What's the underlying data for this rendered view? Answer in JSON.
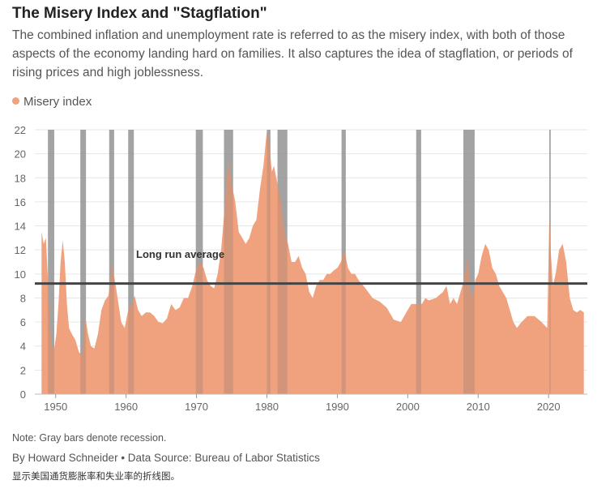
{
  "header": {
    "title": "The Misery Index and \"Stagflation\"",
    "subtitle": "The combined inflation and unemployment rate is referred to as the misery index, with both of those aspects of the economy landing hard on families. It also captures the idea of stagflation, or periods of rising prices and high joblessness."
  },
  "legend": {
    "label": "Misery index"
  },
  "footer": {
    "note": "Note: Gray bars denote recession.",
    "credit": "By Howard Schneider • Data Source: Bureau of Labor Statistics",
    "caption_cn": "显示美国通货膨胀率和失业率的折线图。"
  },
  "colors": {
    "area": "#f0a17d",
    "recession": "#9a9a9a",
    "average_line": "#444444",
    "grid": "#e6e6e6"
  },
  "chart_data": {
    "type": "area",
    "ylim": [
      0,
      22
    ],
    "xlim": [
      1947.5,
      2025.5
    ],
    "y_ticks": [
      0,
      2,
      4,
      6,
      8,
      10,
      12,
      14,
      16,
      18,
      20,
      22
    ],
    "x_ticks": [
      1950,
      1960,
      1970,
      1980,
      1990,
      2000,
      2010,
      2020
    ],
    "grid": true,
    "legend_position": "top-left",
    "series": [
      {
        "name": "Misery index",
        "x": [
          1948.0,
          1948.3,
          1948.6,
          1948.9,
          1949.2,
          1949.5,
          1949.8,
          1950.1,
          1950.4,
          1950.7,
          1951.0,
          1951.3,
          1951.6,
          1951.9,
          1952.3,
          1952.8,
          1953.3,
          1953.8,
          1954.2,
          1954.6,
          1955.0,
          1955.5,
          1956.0,
          1956.5,
          1957.0,
          1957.5,
          1958.0,
          1958.4,
          1958.8,
          1959.3,
          1959.8,
          1960.3,
          1960.8,
          1961.2,
          1961.7,
          1962.2,
          1962.8,
          1963.4,
          1964.0,
          1964.6,
          1965.2,
          1965.8,
          1966.4,
          1967.0,
          1967.6,
          1968.2,
          1968.8,
          1969.4,
          1970.0,
          1970.5,
          1971.0,
          1971.5,
          1972.0,
          1972.5,
          1973.0,
          1973.5,
          1974.0,
          1974.5,
          1975.0,
          1975.5,
          1976.0,
          1976.5,
          1977.0,
          1977.5,
          1978.0,
          1978.5,
          1979.0,
          1979.5,
          1980.0,
          1980.3,
          1980.7,
          1981.0,
          1981.5,
          1982.0,
          1982.5,
          1983.0,
          1983.5,
          1984.0,
          1984.5,
          1985.0,
          1985.5,
          1986.0,
          1986.5,
          1987.0,
          1987.5,
          1988.0,
          1988.5,
          1989.0,
          1989.5,
          1990.0,
          1990.5,
          1991.0,
          1991.5,
          1992.0,
          1992.5,
          1993.0,
          1994.0,
          1995.0,
          1996.0,
          1997.0,
          1998.0,
          1999.0,
          2000.0,
          2000.5,
          2001.0,
          2001.5,
          2002.0,
          2002.5,
          2003.0,
          2004.0,
          2005.0,
          2005.5,
          2006.0,
          2006.5,
          2007.0,
          2007.5,
          2008.0,
          2008.5,
          2008.9,
          2009.2,
          2009.6,
          2010.0,
          2010.5,
          2011.0,
          2011.5,
          2012.0,
          2012.5,
          2013.0,
          2014.0,
          2015.0,
          2015.5,
          2016.0,
          2017.0,
          2018.0,
          2019.0,
          2019.8,
          2020.1,
          2020.3,
          2020.6,
          2021.0,
          2021.5,
          2022.0,
          2022.5,
          2023.0,
          2023.5,
          2024.0,
          2024.5,
          2025.0
        ],
        "values": [
          13.5,
          12.5,
          13.0,
          9.5,
          5.5,
          4.0,
          3.8,
          5.0,
          7.5,
          11.0,
          12.8,
          11.0,
          7.5,
          5.5,
          5.0,
          4.5,
          3.5,
          3.2,
          6.5,
          5.0,
          4.0,
          3.8,
          5.0,
          7.0,
          7.8,
          8.2,
          10.8,
          9.5,
          8.0,
          6.0,
          5.5,
          7.0,
          7.5,
          8.2,
          7.0,
          6.5,
          6.8,
          6.8,
          6.5,
          6.0,
          5.9,
          6.3,
          7.5,
          7.0,
          7.2,
          8.0,
          8.0,
          9.0,
          10.5,
          11.0,
          10.5,
          9.5,
          9.0,
          8.8,
          10.0,
          12.0,
          15.5,
          19.5,
          17.5,
          16.0,
          13.5,
          13.0,
          12.5,
          13.0,
          14.0,
          14.5,
          17.0,
          19.0,
          22.0,
          21.0,
          18.5,
          19.0,
          17.5,
          16.0,
          13.5,
          12.5,
          11.0,
          11.0,
          11.5,
          10.5,
          10.0,
          8.5,
          8.0,
          9.0,
          9.5,
          9.5,
          10.0,
          10.0,
          10.3,
          10.5,
          11.0,
          12.0,
          10.5,
          10.0,
          10.0,
          9.5,
          8.8,
          8.0,
          7.7,
          7.2,
          6.2,
          6.0,
          7.0,
          7.5,
          7.5,
          7.5,
          7.5,
          8.0,
          7.8,
          8.0,
          8.5,
          9.0,
          7.5,
          8.0,
          7.5,
          8.5,
          9.5,
          11.5,
          8.5,
          8.0,
          9.5,
          10.0,
          11.5,
          12.5,
          12.0,
          10.5,
          10.0,
          9.0,
          8.0,
          6.0,
          5.5,
          5.9,
          6.5,
          6.5,
          6.0,
          5.5,
          14.8,
          12.0,
          9.0,
          10.0,
          12.0,
          12.5,
          11.0,
          8.0,
          7.0,
          6.8,
          7.0,
          6.8
        ]
      }
    ],
    "recessions": [
      [
        1948.9,
        1949.8
      ],
      [
        1953.5,
        1954.3
      ],
      [
        1957.6,
        1958.3
      ],
      [
        1960.3,
        1961.1
      ],
      [
        1969.9,
        1970.9
      ],
      [
        1973.9,
        1975.2
      ],
      [
        1980.0,
        1980.5
      ],
      [
        1981.5,
        1982.9
      ],
      [
        1990.6,
        1991.2
      ],
      [
        2001.2,
        2001.9
      ],
      [
        2007.9,
        2009.5
      ],
      [
        2020.1,
        2020.3
      ]
    ],
    "long_run_average": 9.2,
    "annotations": [
      {
        "text": "Long run average"
      }
    ]
  }
}
